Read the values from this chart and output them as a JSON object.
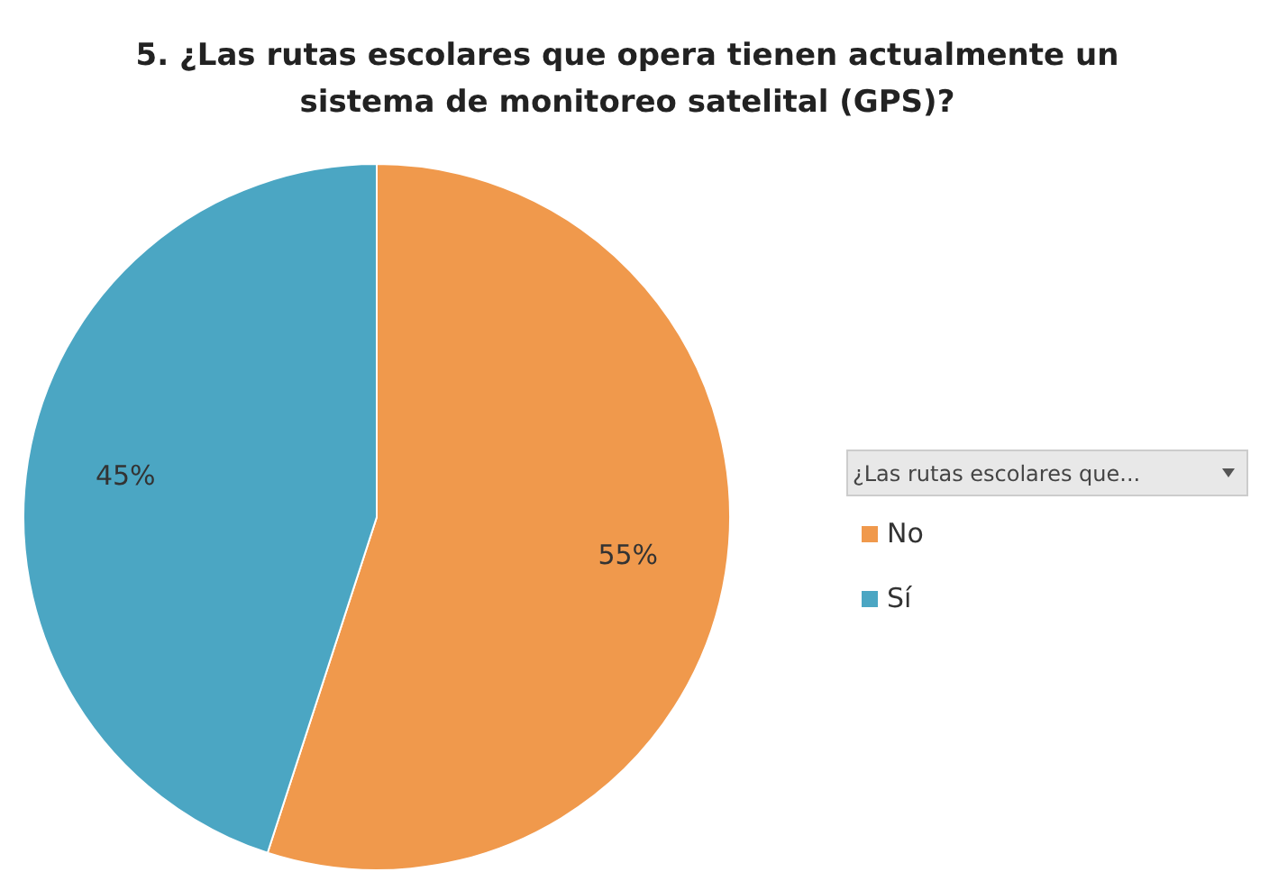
{
  "chart_data": {
    "type": "pie",
    "title": "5. ¿Las rutas escolares que opera tienen actualmente un sistema de monitoreo satelital (GPS)?",
    "legend_title": "¿Las rutas escolares que...",
    "categories": [
      "No",
      "Sí"
    ],
    "values": [
      55,
      45
    ],
    "colors": [
      "#f0994c",
      "#4ba6c3"
    ],
    "value_labels": [
      "55%",
      "45%"
    ],
    "legend": "right"
  }
}
